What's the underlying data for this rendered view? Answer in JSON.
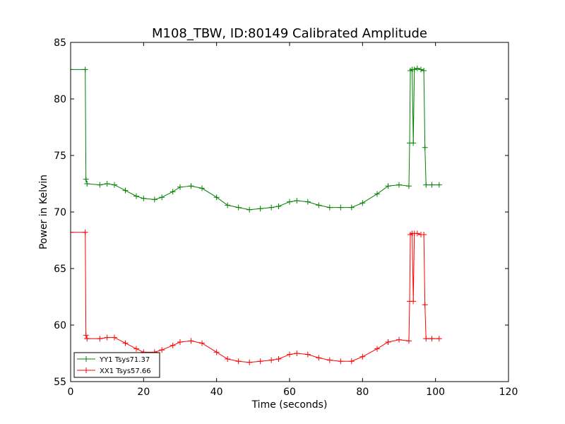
{
  "chart_data": {
    "type": "line",
    "title": "M108_TBW, ID:80149 Calibrated Amplitude",
    "xlabel": "Time (seconds)",
    "ylabel": "Power in Kelvin",
    "xlim": [
      0,
      120
    ],
    "ylim": [
      55,
      85
    ],
    "xticks": [
      0,
      20,
      40,
      60,
      80,
      100,
      120
    ],
    "yticks": [
      55,
      60,
      65,
      70,
      75,
      80,
      85
    ],
    "xtick_labels": [
      "0",
      "20",
      "40",
      "60",
      "80",
      "100",
      "120"
    ],
    "ytick_labels": [
      "55",
      "60",
      "65",
      "70",
      "75",
      "80",
      "85"
    ],
    "grid": false,
    "legend_position": "lower-left",
    "marker": "plus",
    "series": [
      {
        "name": "YY1 Tsys71.37",
        "color": "#008000",
        "x": [
          0,
          4,
          4.2,
          4.5,
          8,
          10,
          12,
          15,
          18,
          20,
          23,
          25,
          28,
          30,
          33,
          36,
          40,
          43,
          46,
          49,
          52,
          55,
          57,
          60,
          62,
          65,
          68,
          71,
          74,
          77,
          80,
          84,
          87,
          90,
          92.7,
          92.9,
          93.1,
          93.6,
          93.9,
          94.2,
          95,
          96,
          96.8,
          97.1,
          97.4,
          99,
          101
        ],
        "y": [
          82.6,
          82.6,
          72.9,
          72.5,
          72.4,
          72.5,
          72.4,
          71.9,
          71.4,
          71.2,
          71.1,
          71.3,
          71.8,
          72.2,
          72.3,
          72.1,
          71.3,
          70.6,
          70.4,
          70.2,
          70.3,
          70.4,
          70.5,
          70.9,
          71.0,
          70.9,
          70.6,
          70.4,
          70.4,
          70.4,
          70.8,
          71.6,
          72.3,
          72.4,
          72.3,
          76.1,
          82.5,
          82.6,
          76.1,
          82.6,
          82.7,
          82.6,
          82.5,
          75.7,
          72.4,
          72.4,
          72.4
        ]
      },
      {
        "name": "XX1 Tsys57.66",
        "color": "#ff0000",
        "x": [
          0,
          4,
          4.2,
          4.5,
          8,
          10,
          12,
          15,
          18,
          20,
          23,
          25,
          28,
          30,
          33,
          36,
          40,
          43,
          46,
          49,
          52,
          55,
          57,
          60,
          62,
          65,
          68,
          71,
          74,
          77,
          80,
          84,
          87,
          90,
          92.7,
          92.9,
          93.1,
          93.6,
          93.9,
          94.2,
          95,
          96,
          96.8,
          97.1,
          97.4,
          99,
          101
        ],
        "y": [
          68.2,
          68.2,
          59.1,
          58.8,
          58.8,
          58.9,
          58.9,
          58.4,
          57.9,
          57.6,
          57.6,
          57.8,
          58.2,
          58.5,
          58.6,
          58.4,
          57.6,
          57.0,
          56.8,
          56.7,
          56.8,
          56.9,
          57.0,
          57.4,
          57.5,
          57.4,
          57.1,
          56.9,
          56.8,
          56.8,
          57.2,
          57.9,
          58.5,
          58.7,
          58.6,
          62.1,
          68.0,
          68.1,
          62.1,
          68.1,
          68.1,
          68.0,
          68.0,
          61.8,
          58.8,
          58.8,
          58.8
        ]
      }
    ]
  }
}
